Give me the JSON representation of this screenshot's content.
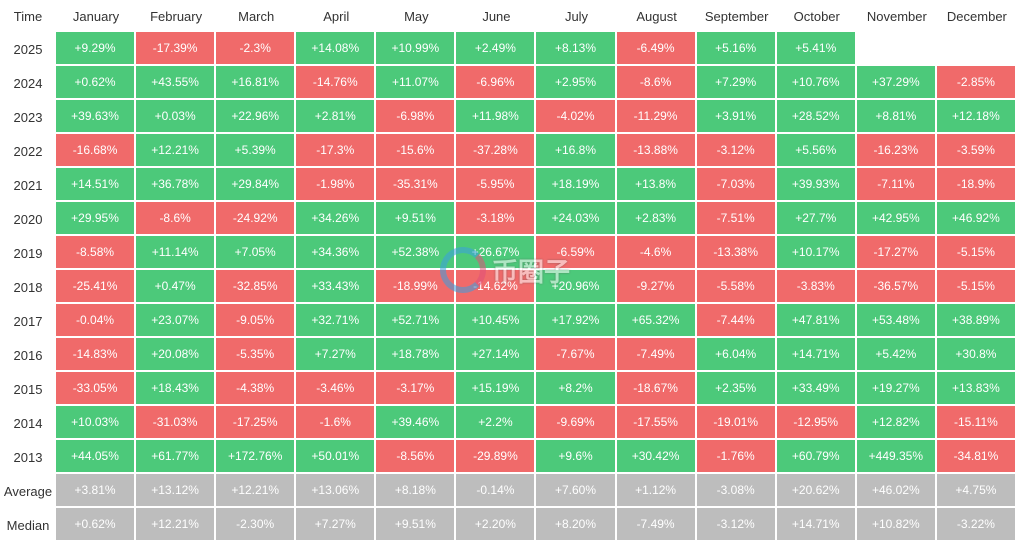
{
  "chart_data": {
    "type": "heatmap",
    "corner_label": "Time",
    "columns": [
      "January",
      "February",
      "March",
      "April",
      "May",
      "June",
      "July",
      "August",
      "September",
      "October",
      "November",
      "December"
    ],
    "rows": [
      {
        "label": "2025",
        "values": [
          "+9.29%",
          "-17.39%",
          "-2.3%",
          "+14.08%",
          "+10.99%",
          "+2.49%",
          "+8.13%",
          "-6.49%",
          "+5.16%",
          "+5.41%",
          null,
          null
        ]
      },
      {
        "label": "2024",
        "values": [
          "+0.62%",
          "+43.55%",
          "+16.81%",
          "-14.76%",
          "+11.07%",
          "-6.96%",
          "+2.95%",
          "-8.6%",
          "+7.29%",
          "+10.76%",
          "+37.29%",
          "-2.85%"
        ]
      },
      {
        "label": "2023",
        "values": [
          "+39.63%",
          "+0.03%",
          "+22.96%",
          "+2.81%",
          "-6.98%",
          "+11.98%",
          "-4.02%",
          "-11.29%",
          "+3.91%",
          "+28.52%",
          "+8.81%",
          "+12.18%"
        ]
      },
      {
        "label": "2022",
        "values": [
          "-16.68%",
          "+12.21%",
          "+5.39%",
          "-17.3%",
          "-15.6%",
          "-37.28%",
          "+16.8%",
          "-13.88%",
          "-3.12%",
          "+5.56%",
          "-16.23%",
          "-3.59%"
        ]
      },
      {
        "label": "2021",
        "values": [
          "+14.51%",
          "+36.78%",
          "+29.84%",
          "-1.98%",
          "-35.31%",
          "-5.95%",
          "+18.19%",
          "+13.8%",
          "-7.03%",
          "+39.93%",
          "-7.11%",
          "-18.9%"
        ]
      },
      {
        "label": "2020",
        "values": [
          "+29.95%",
          "-8.6%",
          "-24.92%",
          "+34.26%",
          "+9.51%",
          "-3.18%",
          "+24.03%",
          "+2.83%",
          "-7.51%",
          "+27.7%",
          "+42.95%",
          "+46.92%"
        ]
      },
      {
        "label": "2019",
        "values": [
          "-8.58%",
          "+11.14%",
          "+7.05%",
          "+34.36%",
          "+52.38%",
          "+26.67%",
          "-6.59%",
          "-4.6%",
          "-13.38%",
          "+10.17%",
          "-17.27%",
          "-5.15%"
        ]
      },
      {
        "label": "2018",
        "values": [
          "-25.41%",
          "+0.47%",
          "-32.85%",
          "+33.43%",
          "-18.99%",
          "-14.62%",
          "+20.96%",
          "-9.27%",
          "-5.58%",
          "-3.83%",
          "-36.57%",
          "-5.15%"
        ]
      },
      {
        "label": "2017",
        "values": [
          "-0.04%",
          "+23.07%",
          "-9.05%",
          "+32.71%",
          "+52.71%",
          "+10.45%",
          "+17.92%",
          "+65.32%",
          "-7.44%",
          "+47.81%",
          "+53.48%",
          "+38.89%"
        ]
      },
      {
        "label": "2016",
        "values": [
          "-14.83%",
          "+20.08%",
          "-5.35%",
          "+7.27%",
          "+18.78%",
          "+27.14%",
          "-7.67%",
          "-7.49%",
          "+6.04%",
          "+14.71%",
          "+5.42%",
          "+30.8%"
        ]
      },
      {
        "label": "2015",
        "values": [
          "-33.05%",
          "+18.43%",
          "-4.38%",
          "-3.46%",
          "-3.17%",
          "+15.19%",
          "+8.2%",
          "-18.67%",
          "+2.35%",
          "+33.49%",
          "+19.27%",
          "+13.83%"
        ]
      },
      {
        "label": "2014",
        "values": [
          "+10.03%",
          "-31.03%",
          "-17.25%",
          "-1.6%",
          "+39.46%",
          "+2.2%",
          "-9.69%",
          "-17.55%",
          "-19.01%",
          "-12.95%",
          "+12.82%",
          "-15.11%"
        ]
      },
      {
        "label": "2013",
        "values": [
          "+44.05%",
          "+61.77%",
          "+172.76%",
          "+50.01%",
          "-8.56%",
          "-29.89%",
          "+9.6%",
          "+30.42%",
          "-1.76%",
          "+60.79%",
          "+449.35%",
          "-34.81%"
        ]
      }
    ],
    "summary_rows": [
      {
        "label": "Average",
        "values": [
          "+3.81%",
          "+13.12%",
          "+12.21%",
          "+13.06%",
          "+8.18%",
          "-0.14%",
          "+7.60%",
          "+1.12%",
          "-3.08%",
          "+20.62%",
          "+46.02%",
          "+4.75%"
        ]
      },
      {
        "label": "Median",
        "values": [
          "+0.62%",
          "+12.21%",
          "-2.30%",
          "+7.27%",
          "+9.51%",
          "+2.20%",
          "+8.20%",
          "-7.49%",
          "-3.12%",
          "+14.71%",
          "+10.82%",
          "-3.22%"
        ]
      }
    ],
    "colors": {
      "positive": "#4cc97a",
      "negative": "#f06a6a",
      "summary": "#bdbdbd",
      "empty": "#ffffff"
    }
  },
  "watermark": {
    "text": "币圈子"
  }
}
